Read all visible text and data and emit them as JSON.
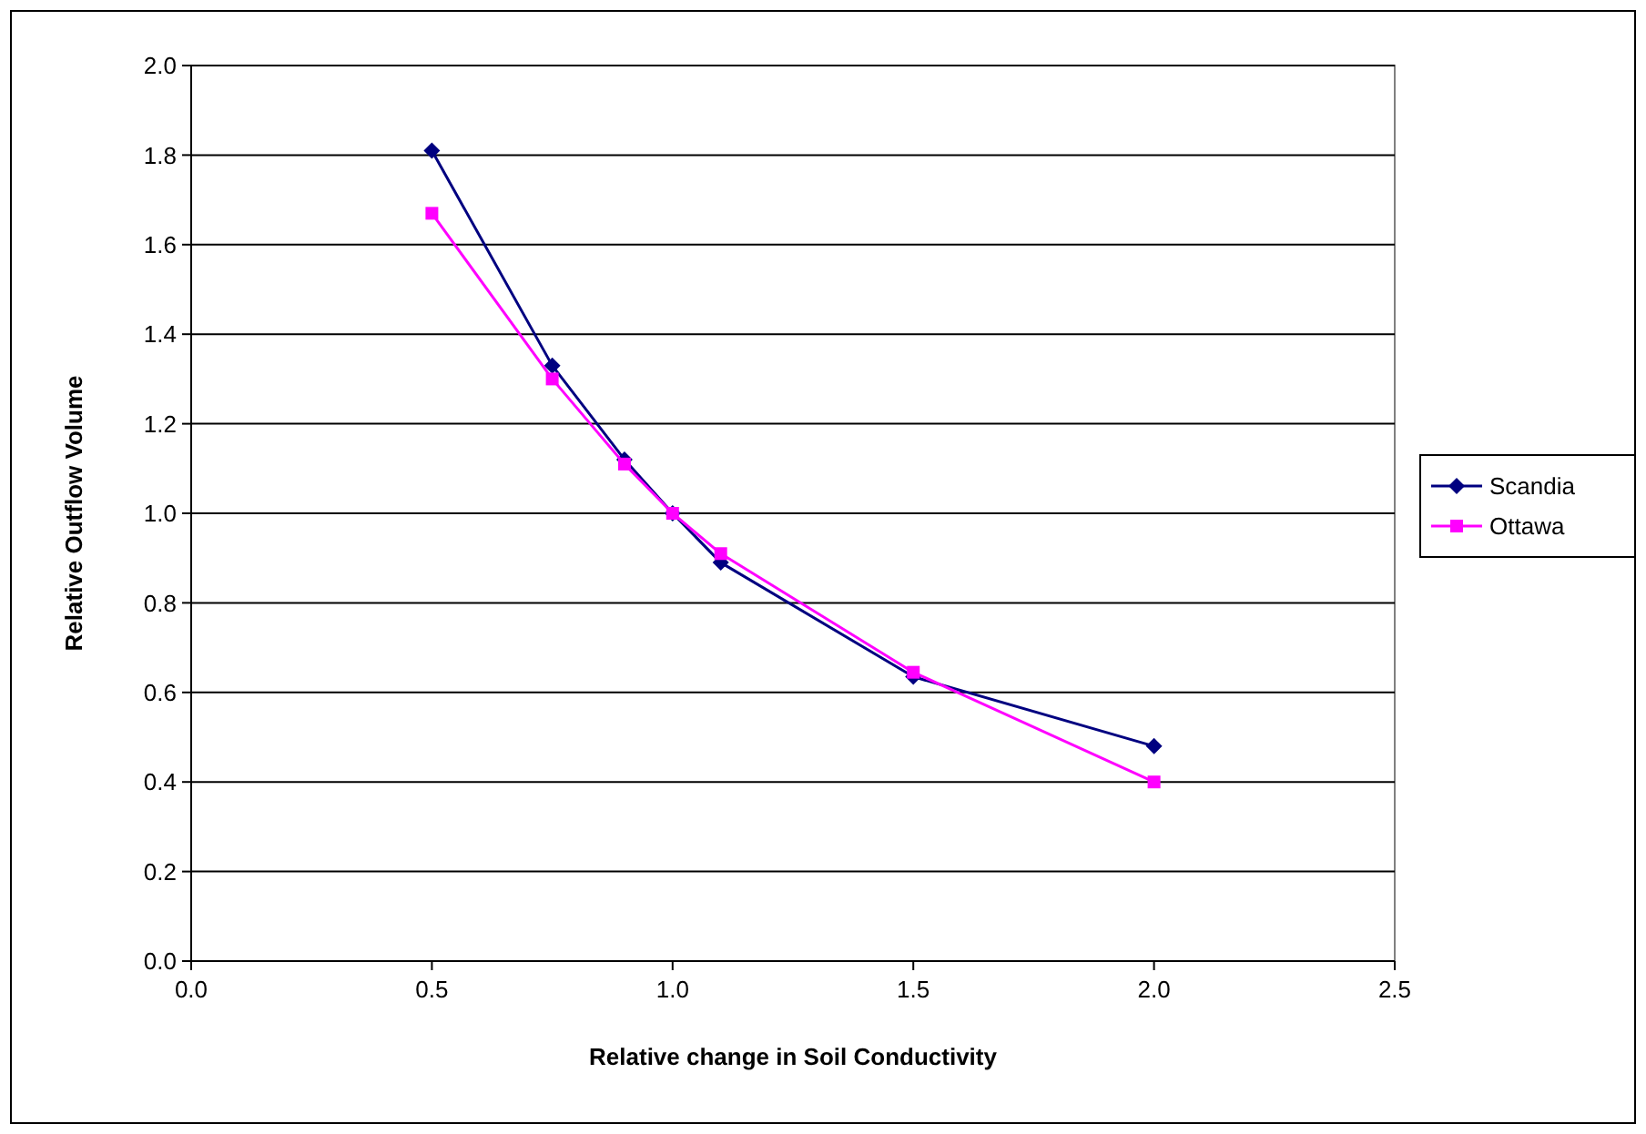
{
  "chart_data": {
    "type": "line",
    "xlabel": "Relative change in Soil Conductivity",
    "ylabel": "Relative Outflow Volume",
    "x": [
      0.5,
      0.75,
      0.9,
      1.0,
      1.1,
      1.5,
      2.0
    ],
    "series": [
      {
        "name": "Scandia",
        "color": "#000080",
        "marker": "diamond",
        "values": [
          1.81,
          1.33,
          1.12,
          1.0,
          0.89,
          0.635,
          0.48
        ]
      },
      {
        "name": "Ottawa",
        "color": "#ff00ff",
        "marker": "square",
        "values": [
          1.67,
          1.3,
          1.11,
          1.0,
          0.91,
          0.645,
          0.4
        ]
      }
    ],
    "xlim": [
      0,
      2.5
    ],
    "xticks": [
      {
        "value": 0,
        "label": "0.0"
      },
      0.5,
      {
        "value": 1,
        "label": "1.0"
      },
      1.5,
      {
        "value": 2,
        "label": "2.0"
      },
      2.5
    ],
    "ylim": [
      0,
      2
    ],
    "yticks": [
      {
        "value": 0,
        "label": "0.0"
      },
      0.2,
      0.4,
      0.6,
      0.8,
      {
        "value": 1,
        "label": "1.0"
      },
      1.2,
      1.4,
      1.6,
      1.8,
      {
        "value": 2,
        "label": "2.0"
      }
    ],
    "grid": "y",
    "legend": "right"
  }
}
